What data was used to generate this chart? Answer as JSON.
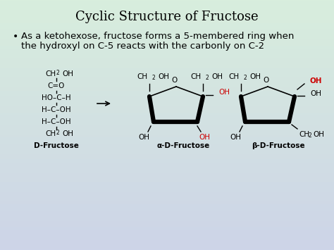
{
  "title": "Cyclic Structure of Fructose",
  "title_fontsize": 13,
  "bullet_text_line1": "As a ketohexose, fructose forms a 5-membered ring when",
  "bullet_text_line2": "the hydroxyl on C-5 reacts with the carbonly on C-2",
  "bullet_fontsize": 9.5,
  "bg_color_top": "#d8eedd",
  "bg_color_bottom": "#cdd4e8",
  "text_color": "#000000",
  "red_color": "#cc0000",
  "label_d": "D-Fructose",
  "label_alpha": "α-D-Fructose",
  "label_beta": "β-D-Fructose"
}
